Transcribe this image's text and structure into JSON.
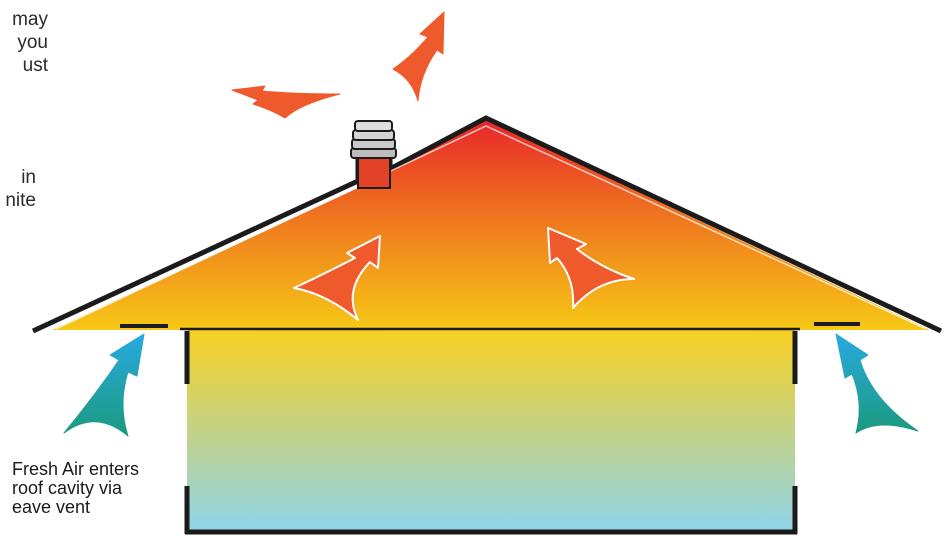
{
  "fragments": {
    "top": [
      "may",
      "you",
      "ust"
    ],
    "middle": [
      "in",
      "nite"
    ]
  },
  "caption": {
    "line1": "Fresh Air enters",
    "line2": "roof cavity via",
    "line3": "eave vent"
  },
  "colors": {
    "roof_top": "#e8262a",
    "roof_mid": "#f07c1e",
    "roof_bottom": "#f6c816",
    "room_top": "#f8d022",
    "room_bottom": "#8fd4ea",
    "outline": "#1b1b1b",
    "hot_arrow": "#ee5a2c",
    "cool_arrow_top": "#29a9e0",
    "cool_arrow_bottom": "#1b9a7e"
  },
  "icons": {
    "hot_air_arrow": "hot-air-arrow-icon",
    "fresh_air_arrow": "fresh-air-arrow-icon",
    "roof_vent": "roof-vent-icon"
  }
}
